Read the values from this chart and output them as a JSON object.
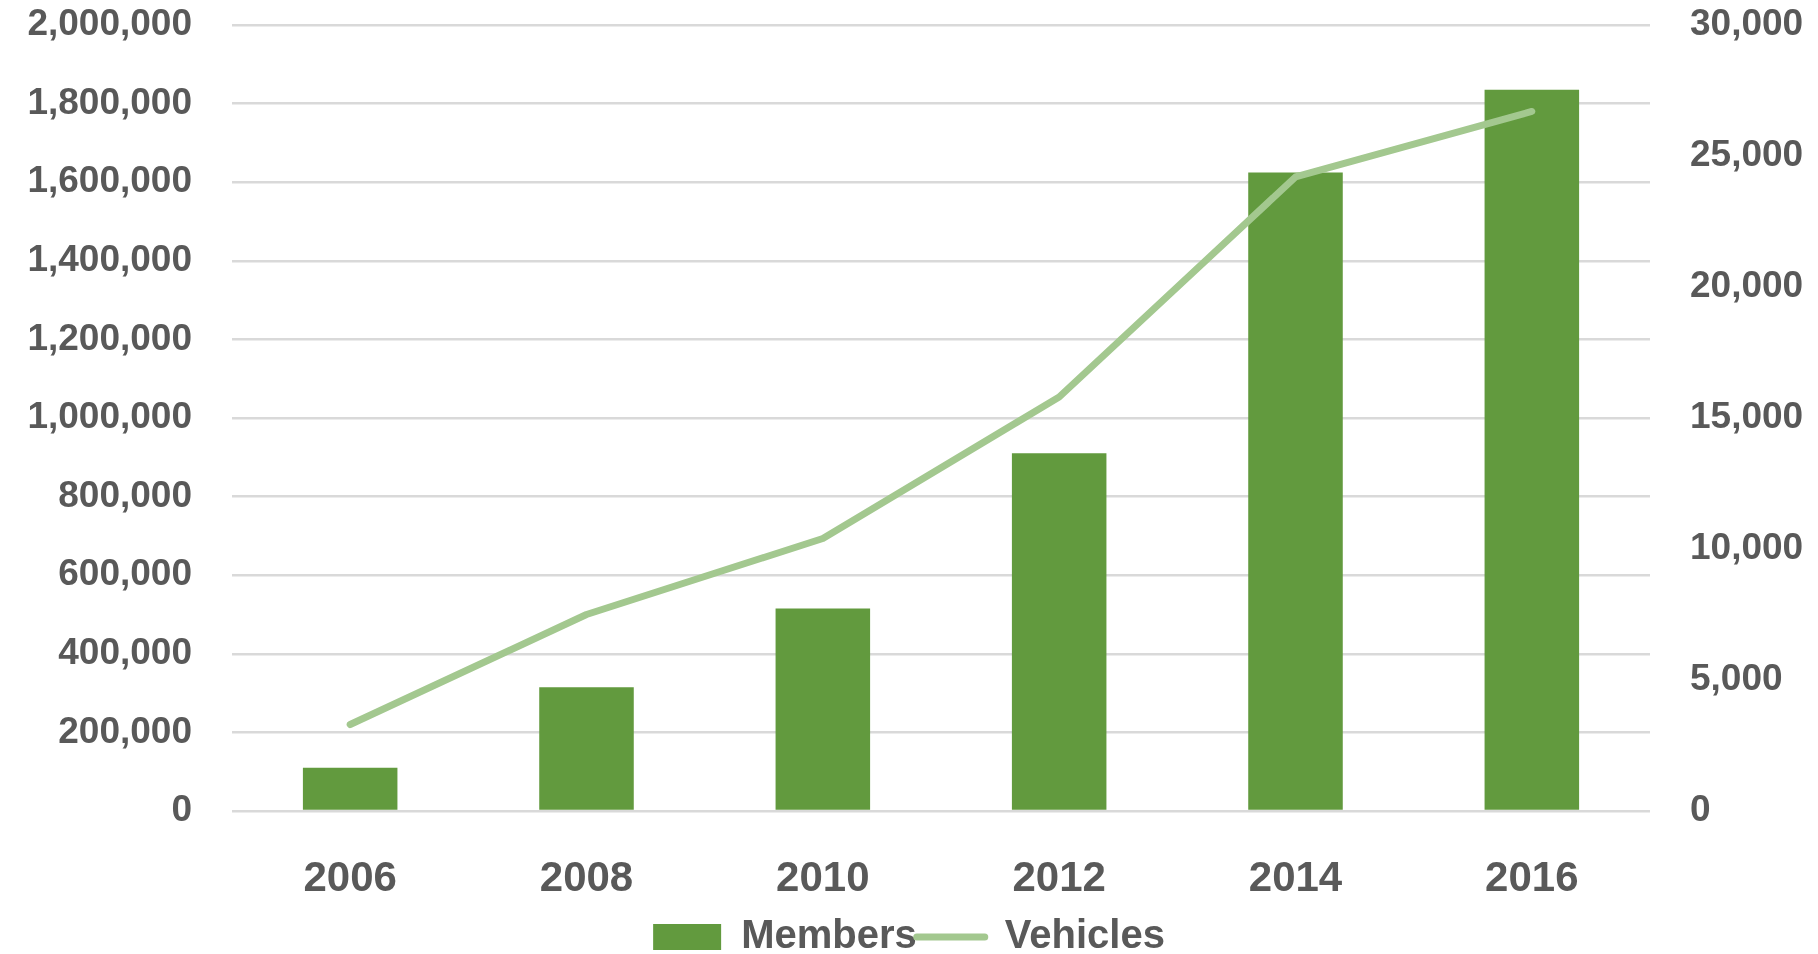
{
  "chart_data": {
    "type": "bar",
    "categories": [
      "2006",
      "2008",
      "2010",
      "2012",
      "2014",
      "2016"
    ],
    "series": [
      {
        "name": "Members",
        "color": "#629a3e",
        "values": [
          110000,
          315000,
          515000,
          910000,
          1625000,
          1835000
        ]
      },
      {
        "name": "Vehicles",
        "type": "line",
        "axis": "y2",
        "color": "#a3c88f",
        "values": [
          3300,
          7500,
          10400,
          15800,
          24200,
          26700
        ]
      }
    ],
    "ylim": [
      0,
      2000000
    ],
    "yticks": [
      {
        "value": 0,
        "label": "0"
      },
      {
        "value": 200000,
        "label": "200,000"
      },
      {
        "value": 400000,
        "label": "400,000"
      },
      {
        "value": 600000,
        "label": "600,000"
      },
      {
        "value": 800000,
        "label": "800,000"
      },
      {
        "value": 1000000,
        "label": "1,000,000"
      },
      {
        "value": 1200000,
        "label": "1,200,000"
      },
      {
        "value": 1400000,
        "label": "1,400,000"
      },
      {
        "value": 1600000,
        "label": "1,600,000"
      },
      {
        "value": 1800000,
        "label": "1,800,000"
      },
      {
        "value": 2000000,
        "label": "2,000,000"
      }
    ],
    "y2lim": [
      0,
      30000
    ],
    "y2ticks": [
      {
        "value": 0,
        "label": "0"
      },
      {
        "value": 5000,
        "label": "5,000"
      },
      {
        "value": 10000,
        "label": "10,000"
      },
      {
        "value": 15000,
        "label": "15,000"
      },
      {
        "value": 20000,
        "label": "20,000"
      },
      {
        "value": 25000,
        "label": "25,000"
      },
      {
        "value": 30000,
        "label": "30,000"
      }
    ],
    "grid": "y",
    "legend": "bottom"
  }
}
